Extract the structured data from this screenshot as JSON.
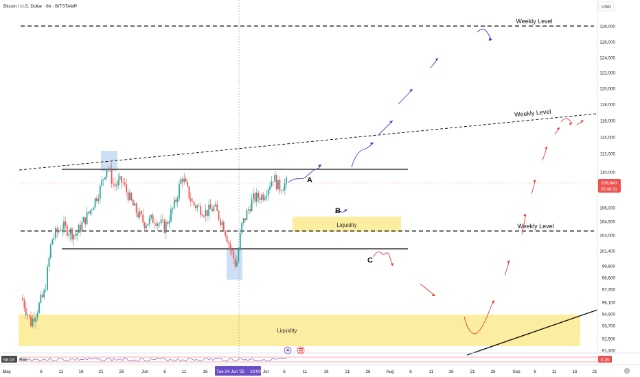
{
  "header": {
    "symbol": "Bitcoin / U.S. Dollar · 8h · BITSTAMP",
    "currency": "USD"
  },
  "chart_data": {
    "type": "candlestick",
    "ylim": [
      90700,
      129500
    ],
    "y_ticks": [
      {
        "value": 128000,
        "label": "128,000"
      },
      {
        "value": 126000,
        "label": "126,000"
      },
      {
        "value": 124000,
        "label": "124,000"
      },
      {
        "value": 122000,
        "label": "122,000"
      },
      {
        "value": 120000,
        "label": "120,000"
      },
      {
        "value": 118000,
        "label": "118,000"
      },
      {
        "value": 116000,
        "label": "116,000"
      },
      {
        "value": 114000,
        "label": "114,000"
      },
      {
        "value": 112000,
        "label": "112,000"
      },
      {
        "value": 110000,
        "label": "110,000"
      },
      {
        "value": 108000,
        "label": "108,000"
      },
      {
        "value": 106000,
        "label": "106,000"
      },
      {
        "value": 104500,
        "label": "104,500"
      },
      {
        "value": 103000,
        "label": "103,000"
      },
      {
        "value": 101400,
        "label": "101,400"
      },
      {
        "value": 99800,
        "label": "99,800"
      },
      {
        "value": 98600,
        "label": "98,600"
      },
      {
        "value": 97350,
        "label": "97,350"
      },
      {
        "value": 96100,
        "label": "96,100"
      },
      {
        "value": 94900,
        "label": "94,900"
      },
      {
        "value": 93700,
        "label": "93,700"
      },
      {
        "value": 92500,
        "label": "92,500"
      },
      {
        "value": 91300,
        "label": "91,300"
      }
    ],
    "x_ticks": [
      "May",
      "6",
      "11",
      "16",
      "21",
      "26",
      "Jun",
      "6",
      "11",
      "16",
      "21",
      "Tue 24 Jun '25",
      "10:00",
      "Jul",
      "6",
      "11",
      "16",
      "21",
      "26",
      "Aug",
      "6",
      "11",
      "16",
      "21",
      "26",
      "Sep",
      "6",
      "11",
      "16",
      "21"
    ],
    "last_price": {
      "value": 108843,
      "label": "108,843",
      "countdown": "05:48:31"
    },
    "candles_summary": [
      {
        "date": "early May",
        "close": 94500
      },
      {
        "date": "May 11",
        "close": 104000
      },
      {
        "date": "May 22",
        "high": 111900,
        "close": 110500
      },
      {
        "date": "Jun 5",
        "low": 100400,
        "close": 103800
      },
      {
        "date": "Jun 9",
        "high": 110400,
        "close": 109600
      },
      {
        "date": "Jun 22",
        "low": 98200,
        "close": 100600
      },
      {
        "date": "Jul 3",
        "high": 110200,
        "close": 108843
      }
    ],
    "horizontal_levels": [
      {
        "label": "Weekly Level",
        "value": 128000,
        "style": "dashed"
      },
      {
        "label": "Weekly Level",
        "value": 103300,
        "style": "dashed"
      },
      {
        "label": "",
        "value": 110400,
        "style": "solid"
      },
      {
        "label": "",
        "value": 101400,
        "style": "solid"
      }
    ],
    "trendlines": [
      {
        "label": "",
        "style": "dashed",
        "from_value": 110600,
        "to_value": 117200
      },
      {
        "label": "Weekly Level",
        "style": "dashed",
        "value_at_label": 117000
      },
      {
        "label": "",
        "style": "solid",
        "from_value": 91000,
        "to_value": 96100
      }
    ],
    "zones": [
      {
        "label": "Liquidity",
        "top": 104900,
        "bottom": 103300,
        "color": "#fbeea0"
      },
      {
        "label": "Liquidity",
        "top": 94800,
        "bottom": 91700,
        "color": "#fbeea0"
      }
    ],
    "annotations": [
      "A",
      "B",
      "C"
    ],
    "rsi": {
      "label": "RSI",
      "value": "58.03",
      "right_value": "0.35"
    }
  },
  "colors": {
    "up": "#26a69a",
    "down": "#ef5350",
    "blue_path": "#4338ca",
    "red_path": "#e53935",
    "zone": "#fbeea0",
    "highlight": "#bcd4f0",
    "time_label": "#6b4ec6"
  }
}
